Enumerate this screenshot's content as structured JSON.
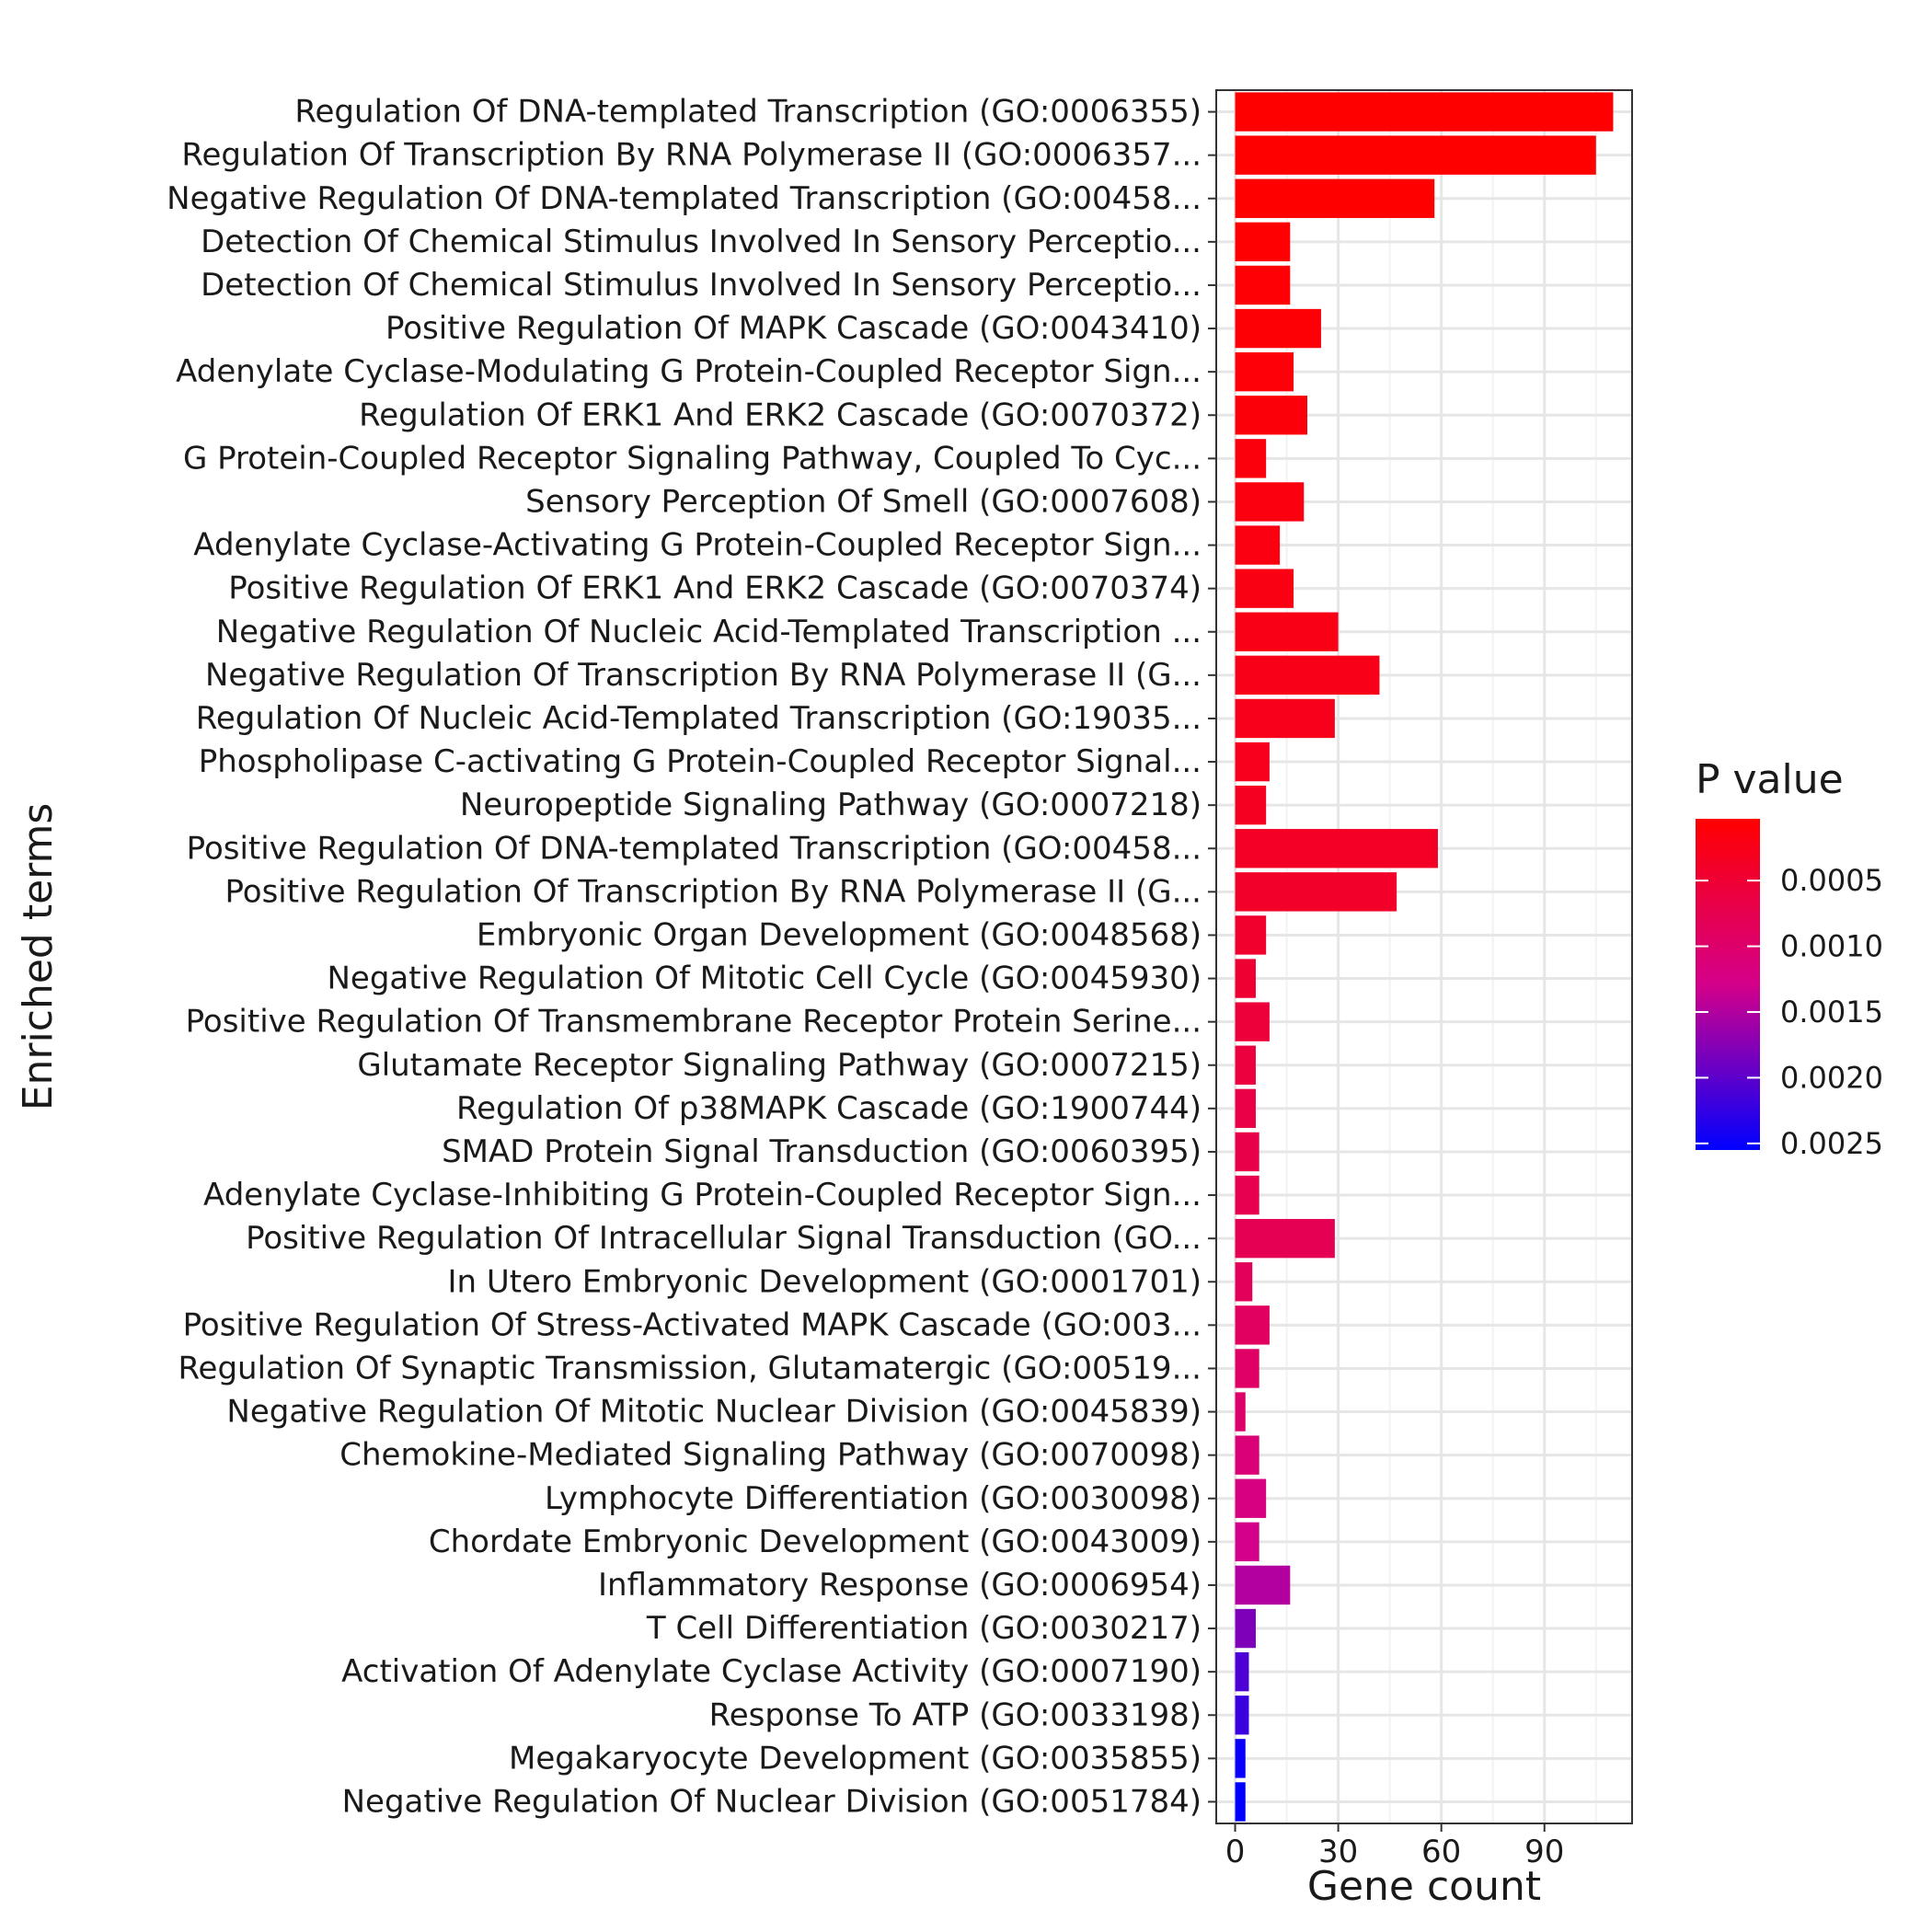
{
  "chart_data": {
    "type": "bar",
    "orientation": "horizontal",
    "xlabel": "Gene count",
    "ylabel": "Enriched terms",
    "xlim": [
      -5.5,
      115.5
    ],
    "xticks": [
      0,
      30,
      60,
      90
    ],
    "grid": true,
    "legend": {
      "title": "P value",
      "position": "right",
      "range": [
        3e-05,
        0.00255
      ],
      "ticks": [
        0.0005,
        0.001,
        0.0015,
        0.002,
        0.0025
      ],
      "tick_labels": [
        "0.0005",
        "0.0010",
        "0.0015",
        "0.0020",
        "0.0025"
      ],
      "low_color": "#ff0000",
      "high_color": "#0000ff"
    },
    "bars": [
      {
        "term": "Regulation Of DNA-templated Transcription (GO:0006355)",
        "count": 110,
        "pvalue": 3e-05
      },
      {
        "term": "Regulation Of Transcription By RNA Polymerase II (GO:0006357...",
        "count": 105,
        "pvalue": 3e-05
      },
      {
        "term": "Negative Regulation Of DNA-templated Transcription (GO:00458...",
        "count": 58,
        "pvalue": 4e-05
      },
      {
        "term": "Detection Of Chemical Stimulus Involved In Sensory Perceptio...",
        "count": 16,
        "pvalue": 5e-05
      },
      {
        "term": "Detection Of Chemical Stimulus Involved In Sensory Perceptio...",
        "count": 16,
        "pvalue": 6e-05
      },
      {
        "term": "Positive Regulation Of MAPK Cascade (GO:0043410)",
        "count": 25,
        "pvalue": 8e-05
      },
      {
        "term": "Adenylate Cyclase-Modulating G Protein-Coupled Receptor Sign...",
        "count": 17,
        "pvalue": 0.0001
      },
      {
        "term": "Regulation Of ERK1 And ERK2 Cascade (GO:0070372)",
        "count": 21,
        "pvalue": 0.00012
      },
      {
        "term": "G Protein-Coupled Receptor Signaling Pathway, Coupled To Cyc...",
        "count": 9,
        "pvalue": 0.00014
      },
      {
        "term": "Sensory Perception Of Smell (GO:0007608)",
        "count": 20,
        "pvalue": 0.00016
      },
      {
        "term": "Adenylate Cyclase-Activating G Protein-Coupled Receptor Sign...",
        "count": 13,
        "pvalue": 0.00018
      },
      {
        "term": "Positive Regulation Of ERK1 And ERK2 Cascade (GO:0070374)",
        "count": 17,
        "pvalue": 0.0002
      },
      {
        "term": "Negative Regulation Of Nucleic Acid-Templated Transcription ...",
        "count": 30,
        "pvalue": 0.00022
      },
      {
        "term": "Negative Regulation Of Transcription By RNA Polymerase II (G...",
        "count": 42,
        "pvalue": 0.00025
      },
      {
        "term": "Regulation Of Nucleic Acid-Templated Transcription (GO:19035...",
        "count": 29,
        "pvalue": 0.00028
      },
      {
        "term": "Phospholipase C-activating G Protein-Coupled Receptor Signal...",
        "count": 10,
        "pvalue": 0.0003
      },
      {
        "term": "Neuropeptide Signaling Pathway (GO:0007218)",
        "count": 9,
        "pvalue": 0.00033
      },
      {
        "term": "Positive Regulation Of DNA-templated Transcription (GO:00458...",
        "count": 59,
        "pvalue": 0.00036
      },
      {
        "term": "Positive Regulation Of Transcription By RNA Polymerase II (G...",
        "count": 47,
        "pvalue": 0.0004
      },
      {
        "term": "Embryonic Organ Development (GO:0048568)",
        "count": 9,
        "pvalue": 0.00045
      },
      {
        "term": "Negative Regulation Of Mitotic Cell Cycle (GO:0045930)",
        "count": 6,
        "pvalue": 0.0005
      },
      {
        "term": "Positive Regulation Of Transmembrane Receptor Protein Serine...",
        "count": 10,
        "pvalue": 0.00055
      },
      {
        "term": "Glutamate Receptor Signaling Pathway (GO:0007215)",
        "count": 6,
        "pvalue": 0.0006
      },
      {
        "term": "Regulation Of p38MAPK Cascade (GO:1900744)",
        "count": 6,
        "pvalue": 0.00065
      },
      {
        "term": "SMAD Protein Signal Transduction (GO:0060395)",
        "count": 7,
        "pvalue": 0.0007
      },
      {
        "term": "Adenylate Cyclase-Inhibiting G Protein-Coupled Receptor Sign...",
        "count": 7,
        "pvalue": 0.00075
      },
      {
        "term": "Positive Regulation Of Intracellular Signal Transduction (GO...",
        "count": 29,
        "pvalue": 0.0008
      },
      {
        "term": "In Utero Embryonic Development (GO:0001701)",
        "count": 5,
        "pvalue": 0.00085
      },
      {
        "term": "Positive Regulation Of Stress-Activated MAPK Cascade (GO:003...",
        "count": 10,
        "pvalue": 0.0009
      },
      {
        "term": "Regulation Of Synaptic Transmission, Glutamatergic (GO:00519...",
        "count": 7,
        "pvalue": 0.00095
      },
      {
        "term": "Negative Regulation Of Mitotic Nuclear Division (GO:0045839)",
        "count": 3,
        "pvalue": 0.001
      },
      {
        "term": "Chemokine-Mediated Signaling Pathway (GO:0070098)",
        "count": 7,
        "pvalue": 0.0011
      },
      {
        "term": "Lymphocyte Differentiation (GO:0030098)",
        "count": 9,
        "pvalue": 0.0012
      },
      {
        "term": "Chordate Embryonic Development (GO:0043009)",
        "count": 7,
        "pvalue": 0.0013
      },
      {
        "term": "Inflammatory Response (GO:0006954)",
        "count": 16,
        "pvalue": 0.0015
      },
      {
        "term": "T Cell Differentiation (GO:0030217)",
        "count": 6,
        "pvalue": 0.0018
      },
      {
        "term": "Activation Of Adenylate Cyclase Activity (GO:0007190)",
        "count": 4,
        "pvalue": 0.0021
      },
      {
        "term": "Response To ATP (GO:0033198)",
        "count": 4,
        "pvalue": 0.0022
      },
      {
        "term": "Megakaryocyte Development (GO:0035855)",
        "count": 3,
        "pvalue": 0.0025
      },
      {
        "term": "Negative Regulation Of Nuclear Division (GO:0051784)",
        "count": 3,
        "pvalue": 0.00255
      }
    ]
  }
}
